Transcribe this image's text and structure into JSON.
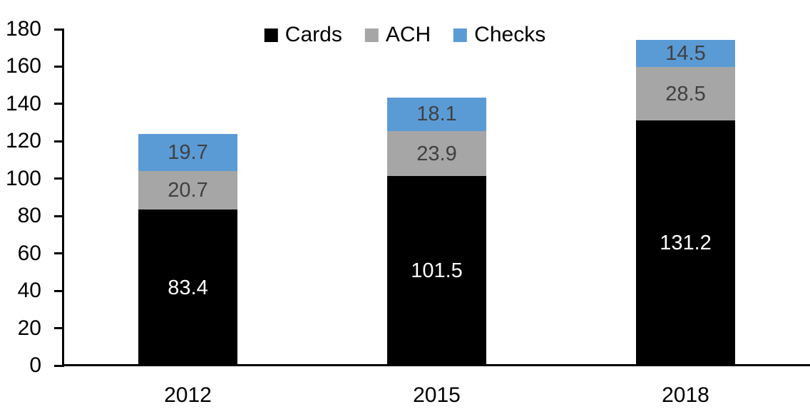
{
  "chart": {
    "background_color": "#FFFFFF",
    "axis_color": "#000000"
  },
  "chart_data": {
    "type": "bar",
    "stacked": true,
    "title": "",
    "xlabel": "",
    "ylabel": "",
    "categories": [
      "2012",
      "2015",
      "2018"
    ],
    "series": [
      {
        "name": "Cards",
        "color": "#000000",
        "label_color": "#FFFFFF",
        "values": [
          83.4,
          101.5,
          131.2
        ],
        "labels": [
          "83.4",
          "101.5",
          "131.2"
        ]
      },
      {
        "name": "ACH",
        "color": "#A6A6A6",
        "label_color": "#404040",
        "values": [
          20.7,
          23.9,
          28.5
        ],
        "labels": [
          "20.7",
          "23.9",
          "28.5"
        ]
      },
      {
        "name": "Checks",
        "color": "#5B9BD5",
        "label_color": "#404040",
        "values": [
          19.7,
          18.1,
          14.5
        ],
        "labels": [
          "19.7",
          "18.1",
          "14.5"
        ]
      }
    ],
    "totals": [
      123.8,
      143.5,
      174.2
    ],
    "y_axis": {
      "min": 0,
      "max": 180,
      "step": 20,
      "tick_labels": [
        "0",
        "20",
        "40",
        "60",
        "80",
        "100",
        "120",
        "140",
        "160",
        "180"
      ]
    },
    "legend": {
      "position": "top",
      "entries": [
        {
          "label": "Cards",
          "color": "#000000"
        },
        {
          "label": "ACH",
          "color": "#A6A6A6"
        },
        {
          "label": "Checks",
          "color": "#5B9BD5"
        }
      ]
    },
    "grid": false
  }
}
